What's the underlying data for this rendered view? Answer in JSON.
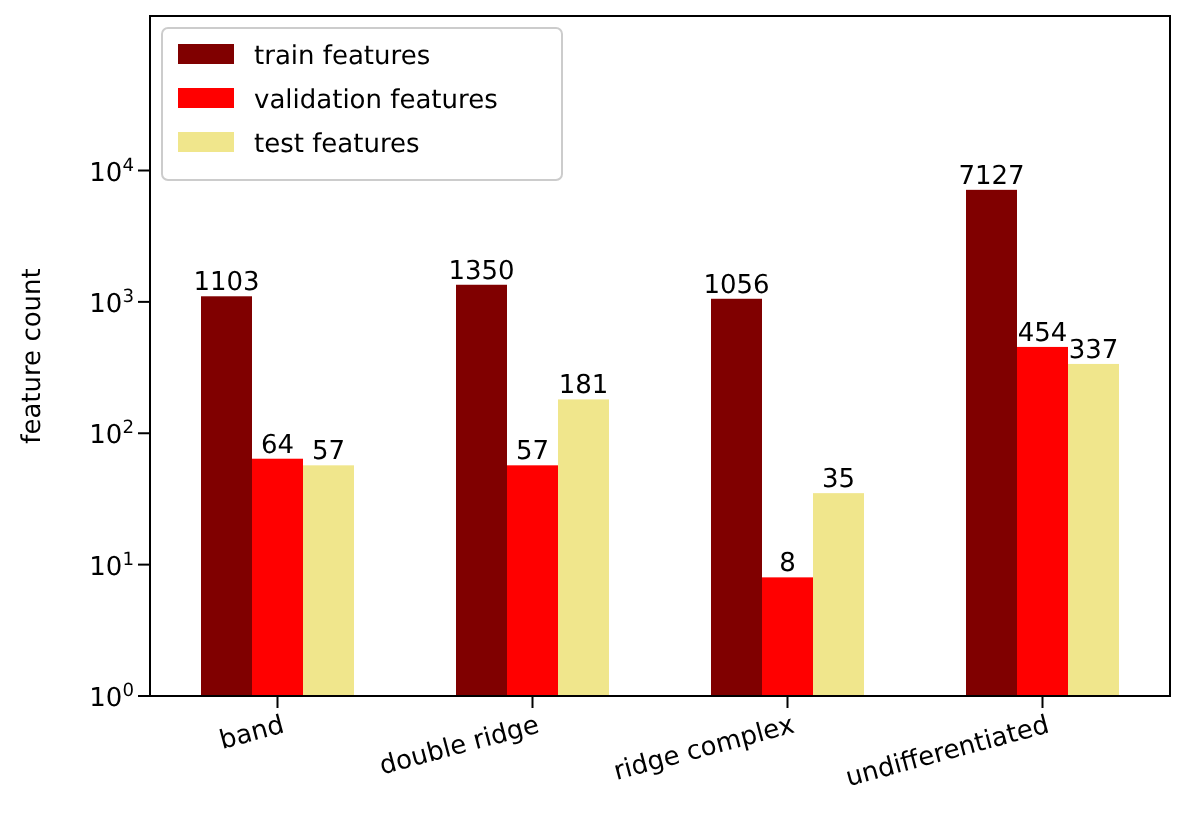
{
  "chart_data": {
    "type": "bar",
    "ylabel": "feature count",
    "categories": [
      "band",
      "double ridge",
      "ridge complex",
      "undifferentiated"
    ],
    "series": [
      {
        "name": "train features",
        "color": "#800000",
        "values": [
          1103,
          1350,
          1056,
          7127
        ]
      },
      {
        "name": "validation features",
        "color": "#ff0000",
        "values": [
          64,
          57,
          8,
          454
        ]
      },
      {
        "name": "test features",
        "color": "#f0e68c",
        "values": [
          57,
          181,
          35,
          337
        ]
      }
    ],
    "log": true,
    "ylim": [
      1,
      150000
    ],
    "yticks": [
      {
        "value": 1,
        "label": "10$^{0}$"
      },
      {
        "value": 10,
        "label": "10$^{1}$"
      },
      {
        "value": 100,
        "label": "10$^{2}$"
      },
      {
        "value": 1000,
        "label": "10$^{3}$"
      },
      {
        "value": 10000,
        "label": "10$^{4}$"
      }
    ],
    "data_labels": true,
    "legend": "top left",
    "grid": false
  }
}
